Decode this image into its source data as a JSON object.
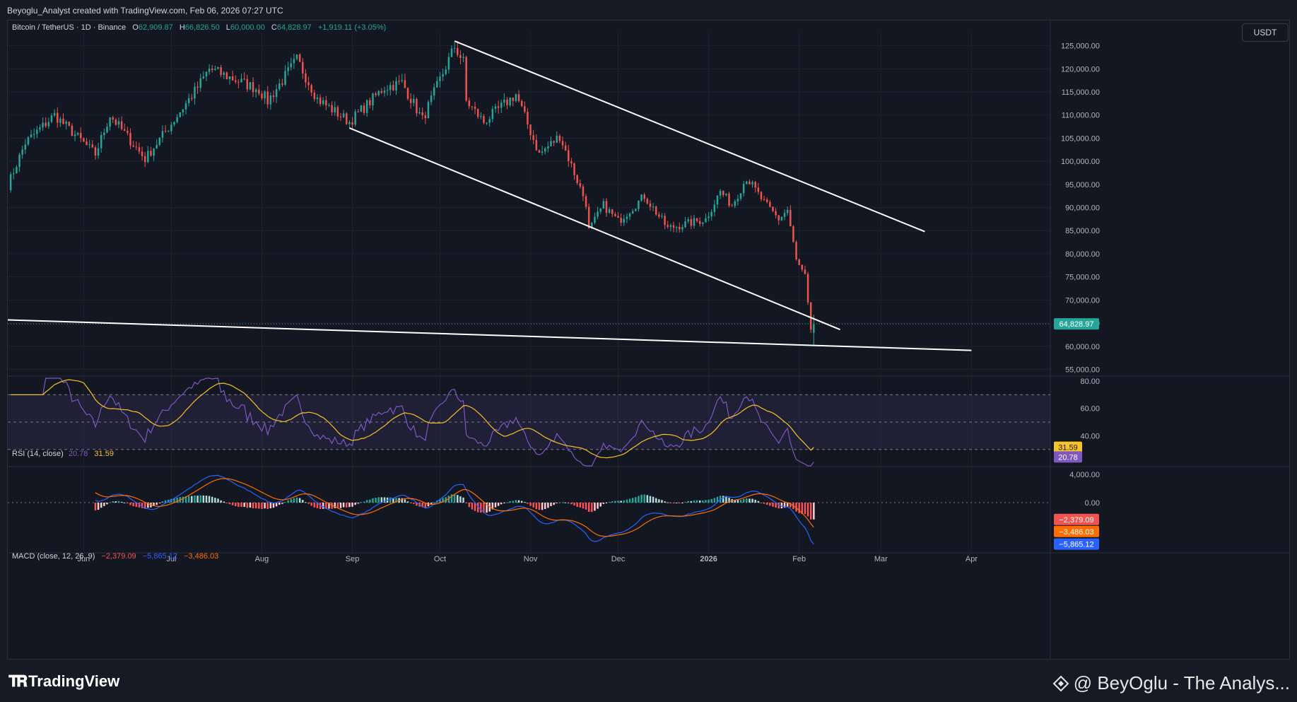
{
  "header": {
    "attribution": "Beyoglu_Analyst created with TradingView.com, Feb 06, 2026 07:27 UTC"
  },
  "legend": {
    "symbol": "Bitcoin / TetherUS · 1D · Binance",
    "o_label": "O",
    "o_value": "62,909.87",
    "h_label": "H",
    "h_value": "66,826.50",
    "l_label": "L",
    "l_value": "60,000.00",
    "c_label": "C",
    "c_value": "64,828.97",
    "change": "+1,919.11 (+3.05%)"
  },
  "currency_button": "USDT",
  "rsi_legend": {
    "name": "RSI (14, close)",
    "v1": "20.78",
    "v2": "31.59"
  },
  "macd_legend": {
    "name": "MACD (close, 12, 26, 9)",
    "v1": "−2,379.09",
    "v2": "−5,865.12",
    "v3": "−3,486.03"
  },
  "colors": {
    "up": "#26a69a",
    "down": "#ef5350",
    "trendline": "#ffffff",
    "rsi": "#7e57c2",
    "rsi_ma": "#f7c325",
    "macd": "#2962ff",
    "signal": "#ff6d00"
  },
  "chart_data": {
    "type": "candlestick",
    "price_axis": {
      "ticks": [
        "55,000.00",
        "60,000.00",
        "65,000.00",
        "70,000.00",
        "75,000.00",
        "80,000.00",
        "85,000.00",
        "90,000.00",
        "95,000.00",
        "100,000.00",
        "105,000.00",
        "110,000.00",
        "115,000.00",
        "120,000.00",
        "125,000.00"
      ],
      "ylim": [
        54000,
        128000
      ],
      "last_price_label": "64,828.97",
      "last_price": 64828.97
    },
    "time_axis": {
      "labels": [
        "Jun",
        "Jul",
        "Aug",
        "Sep",
        "Oct",
        "Nov",
        "Dec",
        "2026",
        "Feb",
        "Mar",
        "Apr"
      ],
      "label_dates": [
        "2025-06-01",
        "2025-07-01",
        "2025-08-01",
        "2025-09-01",
        "2025-10-01",
        "2025-11-01",
        "2025-12-01",
        "2026-01-01",
        "2026-02-01",
        "2026-03-01",
        "2026-04-01"
      ],
      "start": "2025-05-06",
      "end": "2026-04-28"
    },
    "close_anchors": [
      [
        "2025-05-06",
        94800
      ],
      [
        "2025-05-12",
        104000
      ],
      [
        "2025-05-22",
        110000
      ],
      [
        "2025-06-05",
        101500
      ],
      [
        "2025-06-10",
        110000
      ],
      [
        "2025-06-22",
        100500
      ],
      [
        "2025-07-02",
        109000
      ],
      [
        "2025-07-10",
        116000
      ],
      [
        "2025-07-14",
        120000
      ],
      [
        "2025-07-31",
        115500
      ],
      [
        "2025-08-03",
        113000
      ],
      [
        "2025-08-13",
        122000
      ],
      [
        "2025-08-20",
        113500
      ],
      [
        "2025-08-31",
        108500
      ],
      [
        "2025-09-12",
        116000
      ],
      [
        "2025-09-18",
        117000
      ],
      [
        "2025-09-25",
        109000
      ],
      [
        "2025-10-03",
        120500
      ],
      [
        "2025-10-06",
        124800
      ],
      [
        "2025-10-09",
        121500
      ],
      [
        "2025-10-10",
        113000
      ],
      [
        "2025-10-16",
        108500
      ],
      [
        "2025-10-27",
        114500
      ],
      [
        "2025-11-04",
        101500
      ],
      [
        "2025-11-11",
        105500
      ],
      [
        "2025-11-20",
        91000
      ],
      [
        "2025-11-21",
        85000
      ],
      [
        "2025-11-26",
        90500
      ],
      [
        "2025-12-01",
        87000
      ],
      [
        "2025-12-10",
        92500
      ],
      [
        "2025-12-18",
        85500
      ],
      [
        "2025-12-31",
        87500
      ],
      [
        "2026-01-05",
        93500
      ],
      [
        "2026-01-09",
        90500
      ],
      [
        "2026-01-14",
        96500
      ],
      [
        "2026-01-20",
        91000
      ],
      [
        "2026-01-25",
        87500
      ],
      [
        "2026-01-28",
        89500
      ],
      [
        "2026-01-31",
        78500
      ],
      [
        "2026-02-03",
        75000
      ],
      [
        "2026-02-05",
        62900
      ],
      [
        "2026-02-06",
        64829
      ]
    ],
    "trendlines": [
      {
        "name": "upper",
        "from": [
          "2025-10-06",
          126000
        ],
        "to": [
          "2026-03-16",
          84800
        ]
      },
      {
        "name": "lower",
        "from": [
          "2025-08-31",
          107200
        ],
        "to": [
          "2026-02-15",
          63600
        ]
      },
      {
        "name": "base",
        "from": [
          "2025-05-06",
          65700
        ],
        "to": [
          "2026-04-01",
          59100
        ]
      }
    ],
    "rsi": {
      "ticks": [
        "40.00",
        "60.00",
        "80.00"
      ],
      "ylim": [
        18,
        82
      ],
      "bands": [
        30,
        50,
        70
      ],
      "last_values": [
        20.78,
        31.59
      ]
    },
    "macd": {
      "ticks": [
        "0.00",
        "4,000.00"
      ],
      "ylim": [
        -7000,
        5000
      ],
      "last_values": {
        "macd": -5865.12,
        "signal": -3486.03,
        "histogram": -2379.09
      },
      "labels": [
        "−2,379.09",
        "−3,486.03",
        "−5,865.12"
      ]
    }
  },
  "footer": {
    "brand": "TradingView",
    "watermark": "@ BeyOglu - The Analys..."
  }
}
